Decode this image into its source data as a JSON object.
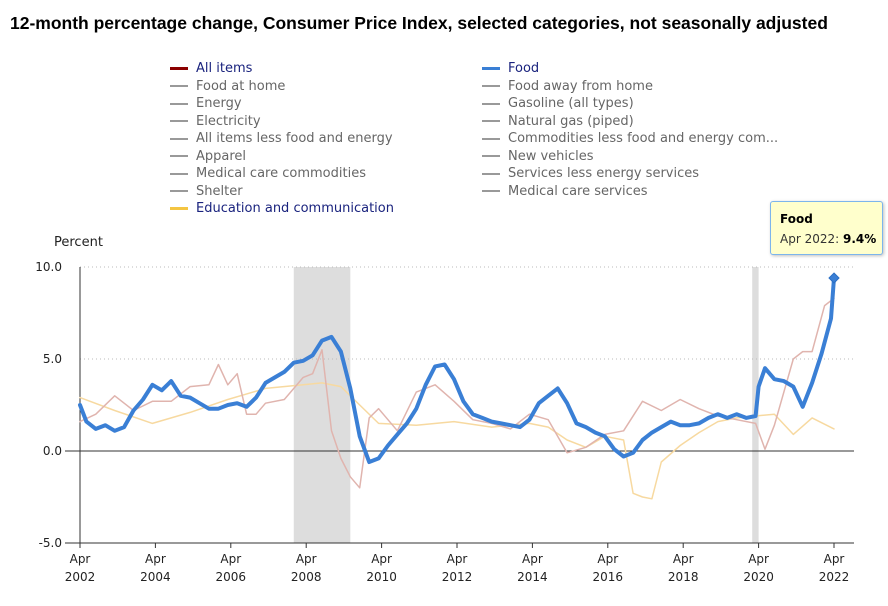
{
  "title": "12-month percentage change, Consumer Price Index, selected categories, not seasonally adjusted",
  "legend_left": [
    {
      "label": "All items",
      "color": "#8b0000",
      "active": true
    },
    {
      "label": "Food at home",
      "color": "#999999",
      "active": false
    },
    {
      "label": "Energy",
      "color": "#999999",
      "active": false
    },
    {
      "label": "Electricity",
      "color": "#999999",
      "active": false
    },
    {
      "label": "All items less food and energy",
      "color": "#999999",
      "active": false
    },
    {
      "label": "Apparel",
      "color": "#999999",
      "active": false
    },
    {
      "label": "Medical care commodities",
      "color": "#999999",
      "active": false
    },
    {
      "label": "Shelter",
      "color": "#999999",
      "active": false
    },
    {
      "label": "Education and communication",
      "color": "#f4c542",
      "active": true
    }
  ],
  "legend_right": [
    {
      "label": "Food",
      "color": "#3a7fd5",
      "active": true
    },
    {
      "label": "Food away from home",
      "color": "#999999",
      "active": false
    },
    {
      "label": "Gasoline (all types)",
      "color": "#999999",
      "active": false
    },
    {
      "label": "Natural gas (piped)",
      "color": "#999999",
      "active": false
    },
    {
      "label": "Commodities less food and energy com...",
      "color": "#999999",
      "active": false
    },
    {
      "label": "New vehicles",
      "color": "#999999",
      "active": false
    },
    {
      "label": "Services less energy services",
      "color": "#999999",
      "active": false
    },
    {
      "label": "Medical care services",
      "color": "#999999",
      "active": false
    }
  ],
  "tooltip": {
    "series": "Food",
    "date": "Apr 2022",
    "value": "9.4%"
  },
  "chart_data": {
    "type": "line",
    "ylabel": "Percent",
    "ylim": [
      -5,
      10
    ],
    "xlim": [
      2002.25,
      2022.25
    ],
    "yticks": [
      "10.0",
      "5.0",
      "0.0",
      "-5.0"
    ],
    "ytick_values": [
      10,
      5,
      0,
      -5
    ],
    "xticks": [
      {
        "month": "Apr",
        "year": "2002",
        "x": 2002.25
      },
      {
        "month": "Apr",
        "year": "2004",
        "x": 2004.25
      },
      {
        "month": "Apr",
        "year": "2006",
        "x": 2006.25
      },
      {
        "month": "Apr",
        "year": "2008",
        "x": 2008.25
      },
      {
        "month": "Apr",
        "year": "2010",
        "x": 2010.25
      },
      {
        "month": "Apr",
        "year": "2012",
        "x": 2012.25
      },
      {
        "month": "Apr",
        "year": "2014",
        "x": 2014.25
      },
      {
        "month": "Apr",
        "year": "2016",
        "x": 2016.25
      },
      {
        "month": "Apr",
        "year": "2018",
        "x": 2018.25
      },
      {
        "month": "Apr",
        "year": "2020",
        "x": 2020.25
      },
      {
        "month": "Apr",
        "year": "2022",
        "x": 2022.25
      }
    ],
    "recessions": [
      [
        2007.92,
        2009.42
      ],
      [
        2020.08,
        2020.25
      ]
    ],
    "series": [
      {
        "name": "Food",
        "color": "#3a7fd5",
        "width": 4,
        "x": [
          2002.25,
          2002.42,
          2002.67,
          2002.92,
          2003.17,
          2003.42,
          2003.67,
          2003.92,
          2004.17,
          2004.42,
          2004.67,
          2004.92,
          2005.17,
          2005.42,
          2005.67,
          2005.92,
          2006.17,
          2006.42,
          2006.67,
          2006.92,
          2007.17,
          2007.42,
          2007.67,
          2007.92,
          2008.17,
          2008.42,
          2008.67,
          2008.92,
          2009.17,
          2009.42,
          2009.67,
          2009.92,
          2010.17,
          2010.42,
          2010.67,
          2010.92,
          2011.17,
          2011.42,
          2011.67,
          2011.92,
          2012.17,
          2012.42,
          2012.67,
          2012.92,
          2013.17,
          2013.42,
          2013.67,
          2013.92,
          2014.17,
          2014.42,
          2014.67,
          2014.92,
          2015.17,
          2015.42,
          2015.67,
          2015.92,
          2016.17,
          2016.42,
          2016.67,
          2016.92,
          2017.17,
          2017.42,
          2017.67,
          2017.92,
          2018.17,
          2018.42,
          2018.67,
          2018.92,
          2019.17,
          2019.42,
          2019.67,
          2019.92,
          2020.17,
          2020.25,
          2020.42,
          2020.67,
          2020.92,
          2021.17,
          2021.42,
          2021.67,
          2021.92,
          2022.17,
          2022.25
        ],
        "y": [
          2.5,
          1.6,
          1.2,
          1.4,
          1.1,
          1.3,
          2.2,
          2.8,
          3.6,
          3.3,
          3.8,
          3.0,
          2.9,
          2.6,
          2.3,
          2.3,
          2.5,
          2.6,
          2.4,
          2.9,
          3.7,
          4.0,
          4.3,
          4.8,
          4.9,
          5.2,
          6.0,
          6.2,
          5.4,
          3.4,
          0.8,
          -0.6,
          -0.4,
          0.3,
          0.9,
          1.5,
          2.3,
          3.6,
          4.6,
          4.7,
          3.9,
          2.7,
          2.0,
          1.8,
          1.6,
          1.5,
          1.4,
          1.3,
          1.7,
          2.6,
          3.0,
          3.4,
          2.6,
          1.5,
          1.3,
          1.0,
          0.8,
          0.1,
          -0.3,
          -0.1,
          0.6,
          1.0,
          1.3,
          1.6,
          1.4,
          1.4,
          1.5,
          1.8,
          2.0,
          1.8,
          2.0,
          1.8,
          1.9,
          3.5,
          4.5,
          3.9,
          3.8,
          3.5,
          2.4,
          3.7,
          5.3,
          7.2,
          9.4
        ]
      },
      {
        "name": "All items",
        "color": "#e0b4ae",
        "width": 1.5,
        "x": [
          2002.25,
          2002.67,
          2003.17,
          2003.67,
          2004.17,
          2004.67,
          2005.17,
          2005.67,
          2005.92,
          2006.17,
          2006.42,
          2006.67,
          2006.92,
          2007.17,
          2007.67,
          2008.17,
          2008.42,
          2008.67,
          2008.92,
          2009.17,
          2009.42,
          2009.67,
          2009.92,
          2010.17,
          2010.67,
          2011.17,
          2011.67,
          2012.17,
          2012.67,
          2013.17,
          2013.67,
          2014.17,
          2014.67,
          2015.17,
          2015.67,
          2016.17,
          2016.67,
          2017.17,
          2017.67,
          2018.17,
          2018.67,
          2019.17,
          2019.67,
          2020.17,
          2020.42,
          2020.67,
          2021.17,
          2021.42,
          2021.67,
          2022.0,
          2022.25
        ],
        "y": [
          1.6,
          2.0,
          3.0,
          2.2,
          2.7,
          2.7,
          3.5,
          3.6,
          4.7,
          3.6,
          4.2,
          2.0,
          2.0,
          2.6,
          2.8,
          4.0,
          4.2,
          5.5,
          1.1,
          -0.4,
          -1.4,
          -2.0,
          1.8,
          2.3,
          1.1,
          3.2,
          3.6,
          2.7,
          1.7,
          1.5,
          1.2,
          2.0,
          1.7,
          -0.1,
          0.2,
          0.9,
          1.1,
          2.7,
          2.2,
          2.8,
          2.3,
          1.9,
          1.7,
          1.5,
          0.1,
          1.4,
          5.0,
          5.4,
          5.4,
          7.9,
          8.3
        ]
      },
      {
        "name": "Education and communication",
        "color": "#f7d9a0",
        "width": 1.5,
        "x": [
          2002.25,
          2003.17,
          2004.17,
          2005.17,
          2006.17,
          2007.17,
          2008.17,
          2008.67,
          2009.17,
          2009.67,
          2010.17,
          2011.17,
          2012.17,
          2013.17,
          2014.17,
          2014.67,
          2015.17,
          2015.67,
          2016.17,
          2016.67,
          2016.92,
          2017.17,
          2017.42,
          2017.67,
          2018.17,
          2018.67,
          2019.17,
          2019.67,
          2020.17,
          2020.67,
          2021.17,
          2021.67,
          2022.25
        ],
        "y": [
          2.9,
          2.2,
          1.5,
          2.1,
          2.8,
          3.4,
          3.6,
          3.7,
          3.5,
          2.5,
          1.5,
          1.4,
          1.6,
          1.3,
          1.5,
          1.3,
          0.6,
          0.2,
          0.8,
          0.6,
          -2.3,
          -2.5,
          -2.6,
          -0.6,
          0.3,
          1.0,
          1.6,
          1.8,
          1.9,
          2.0,
          0.9,
          1.8,
          1.2
        ]
      }
    ],
    "endpoint": {
      "series": "Food",
      "x": 2022.25,
      "y": 9.4
    }
  }
}
